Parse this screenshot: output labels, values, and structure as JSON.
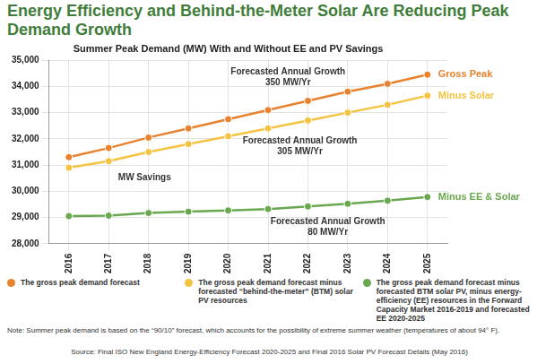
{
  "chart_data": {
    "type": "line",
    "title": "Energy Efficiency and Behind-the-Meter Solar Are Reducing Peak Demand Growth",
    "subtitle": "Summer Peak Demand (MW) With and Without EE and PV Savings",
    "categories": [
      "2016",
      "2017",
      "2018",
      "2019",
      "2020",
      "2021",
      "2022",
      "2023",
      "2024",
      "2025"
    ],
    "series": [
      {
        "name": "The gross peak demand forecast",
        "end_label": "Gross Peak",
        "color": "#e8822e",
        "marker": "circle",
        "values": [
          31300,
          31650,
          32050,
          32400,
          32750,
          33100,
          33450,
          33800,
          34100,
          34450
        ]
      },
      {
        "name": "The gross peak demand forecast minus forecasted “behind-the-meter” (BTM) solar PV resources",
        "end_label": "Minus Solar",
        "color": "#f5c342",
        "marker": "circle",
        "values": [
          30900,
          31150,
          31500,
          31800,
          32100,
          32400,
          32700,
          33000,
          33300,
          33650
        ]
      },
      {
        "name": "The gross peak demand forecast minus forecasted BTM solar PV, minus energy-efficiency (EE) resources in the Forward Capacity Market 2016-2019 and forecasted EE 2020-2025",
        "end_label": "Minus EE & Solar",
        "color": "#6aa84f",
        "marker": "circle",
        "values": [
          29050,
          29070,
          29170,
          29220,
          29270,
          29320,
          29420,
          29520,
          29640,
          29780
        ]
      }
    ],
    "annotations": [
      [
        "Forecasted Annual Growth",
        "350 MW/Yr"
      ],
      [
        "Forecasted Annual Growth",
        "305 MW/Yr"
      ],
      [
        "MW Savings"
      ],
      [
        "Forecasted Annual Growth",
        "80 MW/Yr"
      ]
    ],
    "ylim": [
      28000,
      35000
    ],
    "yticks": [
      {
        "value": 28000,
        "label": "28,000"
      },
      {
        "value": 29000,
        "label": "29,000"
      },
      {
        "value": 30000,
        "label": "30,000"
      },
      {
        "value": 31000,
        "label": "31,000"
      },
      {
        "value": 32000,
        "label": "32,000"
      },
      {
        "value": 33000,
        "label": "33,000"
      },
      {
        "value": 34000,
        "label": "34,000"
      },
      {
        "value": 35000,
        "label": "35,000"
      }
    ],
    "grid": true,
    "legend": "bottom",
    "note": "Note: Summer peak demand is based on the “90/10” forecast, which accounts for the possibility of extreme summer weather (temperatures of about 94° F).",
    "source": "Source: Final ISO New England Energy-Efficiency Forecast 2020-2025 and Final 2016 Solar PV Forecast Details (May 2016)"
  }
}
